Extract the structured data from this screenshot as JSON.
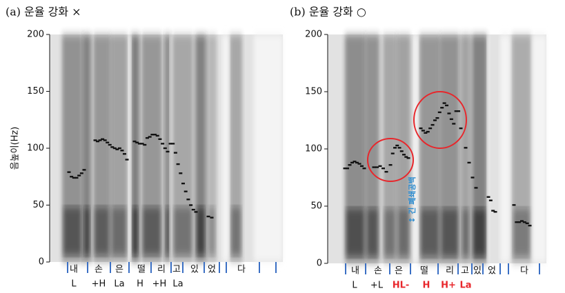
{
  "chart_data": [
    {
      "type": "scatter",
      "title": "(a) 운율 강화 ×",
      "ylabel": "음높이(Hz)",
      "ylim": [
        0,
        200
      ],
      "yticks": [
        0,
        50,
        100,
        150,
        200
      ],
      "series": [
        {
          "color": "#111111",
          "values": [
            79,
            75,
            74,
            74,
            76,
            78,
            81
          ]
        },
        {
          "color": "#111111",
          "values": [
            107,
            106,
            107,
            108,
            107,
            105,
            103,
            101,
            100,
            99,
            100,
            98,
            95,
            90
          ]
        },
        {
          "color": "#111111",
          "values": [
            106,
            105,
            104,
            104,
            103,
            109,
            110,
            112,
            112,
            111,
            108,
            104,
            100,
            97
          ]
        },
        {
          "color": "#111111",
          "values": [
            104,
            104,
            96,
            86,
            78,
            69,
            62,
            55,
            50,
            46,
            44
          ]
        },
        {
          "color": "#111111",
          "values": [
            40,
            39
          ]
        }
      ],
      "syllables": [
        "내",
        "손",
        "은",
        "떨",
        "리",
        "고",
        "있",
        "었",
        "다"
      ],
      "tones": [
        "L",
        "+H",
        "La",
        "H",
        "+H",
        "La"
      ],
      "tone_colors": [
        "#111111",
        "#111111",
        "#111111",
        "#111111",
        "#111111",
        "#111111"
      ]
    },
    {
      "type": "scatter",
      "title": "(b) 운율 강화 ○",
      "ylim": [
        0,
        200
      ],
      "yticks": [
        0,
        50,
        100,
        150,
        200
      ],
      "series": [
        {
          "color": "#111111",
          "values": [
            83,
            83,
            86,
            88,
            89,
            88,
            87,
            85,
            83
          ]
        },
        {
          "color": "#111111",
          "values": [
            84,
            84,
            85,
            83,
            80
          ]
        },
        {
          "color": "#111111",
          "values": [
            86,
            96,
            101,
            103,
            101,
            98,
            95,
            93,
            92
          ]
        },
        {
          "color": "#111111",
          "values": [
            118,
            116,
            114,
            115,
            118,
            121,
            125,
            127,
            132,
            136,
            140,
            138,
            131,
            126,
            122,
            133,
            133,
            118
          ]
        },
        {
          "color": "#111111",
          "values": [
            101,
            88,
            75,
            66
          ]
        },
        {
          "color": "#111111",
          "values": [
            58,
            55,
            46,
            45
          ]
        },
        {
          "color": "#111111",
          "values": [
            51,
            36,
            36,
            37,
            36,
            35,
            33
          ]
        }
      ],
      "syllables": [
        "내",
        "손",
        "은",
        "떨",
        "리",
        "고",
        "있",
        "었",
        "다"
      ],
      "tones": [
        "L",
        "+L",
        "HL-",
        "H",
        "H+",
        "La"
      ],
      "tone_colors": [
        "#111111",
        "#111111",
        "#e8262b",
        "#e8262b",
        "#e8262b",
        "#e8262b"
      ],
      "annotation": "↕ 긴 폐쇄공백"
    }
  ]
}
